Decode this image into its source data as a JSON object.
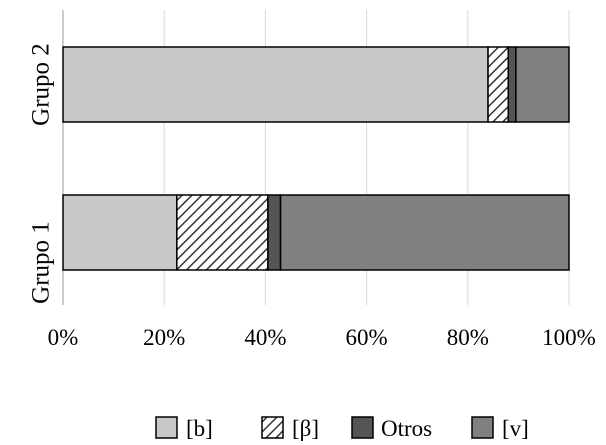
{
  "chart_data": {
    "type": "bar",
    "orientation": "horizontal",
    "stacked": true,
    "percent_scale": true,
    "categories": [
      "Grupo 2",
      "Grupo 1"
    ],
    "series": [
      {
        "name": "[b]",
        "values": [
          84,
          22.5
        ],
        "color": "#c8c8c8",
        "pattern": "solid"
      },
      {
        "name": "[β]",
        "values": [
          4,
          18
        ],
        "color": "#ffffff",
        "pattern": "diagonal-hatch"
      },
      {
        "name": "Otros",
        "values": [
          1.5,
          2.5
        ],
        "color": "#555555",
        "pattern": "solid"
      },
      {
        "name": "[v]",
        "values": [
          10.5,
          57
        ],
        "color": "#808080",
        "pattern": "solid"
      }
    ],
    "xlim": [
      0,
      100
    ],
    "xticks": [
      "0%",
      "20%",
      "40%",
      "60%",
      "80%",
      "100%"
    ],
    "xtick_values": [
      0,
      20,
      40,
      60,
      80,
      100
    ],
    "title": "",
    "xlabel": "",
    "ylabel": "",
    "grid": "vertical",
    "legend_position": "bottom"
  }
}
